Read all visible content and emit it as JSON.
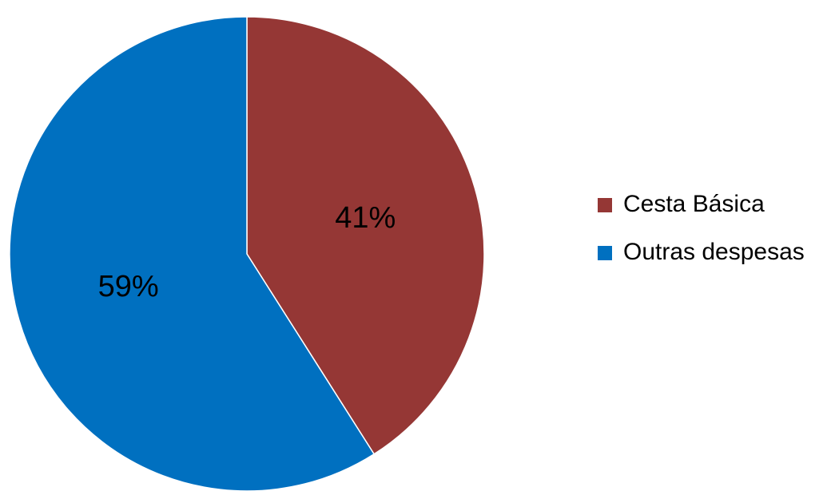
{
  "chart_data": {
    "type": "pie",
    "title": "",
    "slices": [
      {
        "name": "Cesta Básica",
        "value": 41,
        "label": "41%",
        "color": "#953735"
      },
      {
        "name": "Outras despesas",
        "value": 59,
        "label": "59%",
        "color": "#0070C0"
      }
    ],
    "start": "12 o'clock",
    "direction": "clockwise",
    "legend": {
      "placement": "right"
    }
  }
}
